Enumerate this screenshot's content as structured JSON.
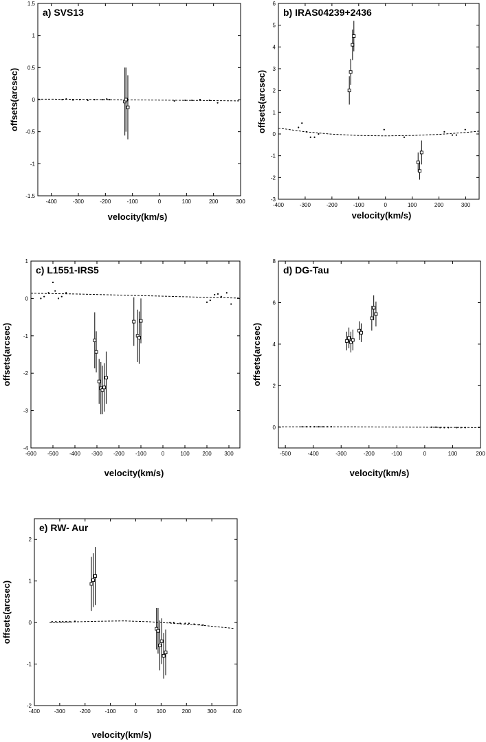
{
  "figure": {
    "background": "#ffffff",
    "ink": "#000000"
  },
  "chart_data": [
    {
      "type": "scatter",
      "title": "a) SVS13",
      "xlabel": "velocity(km/s)",
      "ylabel": "offsets(arcsec)",
      "xlim": [
        -450,
        300
      ],
      "ylim": [
        -1.5,
        1.5
      ],
      "xticks": [
        -400,
        -300,
        -200,
        -100,
        0,
        100,
        200,
        300
      ],
      "yticks": [
        -1.5,
        -1,
        -0.5,
        0,
        0.5,
        1,
        1.5
      ],
      "xtick_labels": [
        "-400",
        "-300",
        "-200",
        "-100",
        "0",
        "100",
        "200",
        "300"
      ],
      "ytick_labels": [
        "-1.5",
        "-1",
        "-0.5",
        "0",
        "0.5",
        "1",
        "1.5"
      ],
      "grid": false,
      "curve": [
        [
          -450,
          0.008
        ],
        [
          -300,
          0.004
        ],
        [
          -150,
          -0.002
        ],
        [
          0,
          -0.008
        ],
        [
          150,
          -0.014
        ],
        [
          300,
          -0.02
        ]
      ],
      "small_points": [
        [
          -360,
          0.0
        ],
        [
          -345,
          0.01
        ],
        [
          -320,
          -0.005
        ],
        [
          -295,
          0.0
        ],
        [
          -265,
          -0.01
        ],
        [
          -240,
          0.0
        ],
        [
          -210,
          0.0
        ],
        [
          -195,
          0.01
        ],
        [
          -185,
          0.0
        ],
        [
          55,
          -0.02
        ],
        [
          95,
          -0.01
        ],
        [
          120,
          -0.01
        ],
        [
          150,
          0.0
        ],
        [
          185,
          -0.01
        ],
        [
          215,
          -0.05
        ]
      ],
      "error_points": [
        {
          "x": -128,
          "y": -0.03,
          "yerr": 0.53
        },
        {
          "x": -124,
          "y": 0.0,
          "yerr": 0.5
        },
        {
          "x": -117,
          "y": -0.12,
          "yerr": 0.5
        }
      ]
    },
    {
      "type": "scatter",
      "title": "b) IRAS04239+2436",
      "xlabel": "velocity(km/s)",
      "ylabel": "offsets(arcsec)",
      "xlim": [
        -400,
        350
      ],
      "ylim": [
        -3,
        6
      ],
      "xticks": [
        -400,
        -300,
        -200,
        -100,
        0,
        100,
        200,
        300
      ],
      "yticks": [
        -3,
        -2,
        -1,
        0,
        1,
        2,
        3,
        4,
        5,
        6
      ],
      "xtick_labels": [
        "-400",
        "-300",
        "-200",
        "-100",
        "0",
        "100",
        "200",
        "300"
      ],
      "ytick_labels": [
        "-3",
        "-2",
        "-1",
        "0",
        "1",
        "2",
        "3",
        "4",
        "5",
        "6"
      ],
      "grid": false,
      "curve": [
        [
          -400,
          0.27
        ],
        [
          -300,
          0.1
        ],
        [
          -200,
          -0.01
        ],
        [
          -100,
          -0.07
        ],
        [
          0,
          -0.09
        ],
        [
          100,
          -0.07
        ],
        [
          200,
          -0.02
        ],
        [
          300,
          0.07
        ],
        [
          350,
          0.13
        ]
      ],
      "small_points": [
        [
          -325,
          0.3
        ],
        [
          -312,
          0.5
        ],
        [
          -295,
          0.1
        ],
        [
          -280,
          -0.15
        ],
        [
          -265,
          -0.15
        ],
        [
          -250,
          0.0
        ],
        [
          -5,
          0.2
        ],
        [
          70,
          -0.15
        ],
        [
          220,
          0.1
        ],
        [
          250,
          -0.05
        ],
        [
          265,
          -0.05
        ],
        [
          298,
          0.2
        ]
      ],
      "error_points": [
        {
          "x": -135,
          "y": 2.0,
          "yerr": 0.65
        },
        {
          "x": -130,
          "y": 2.85,
          "yerr": 0.6
        },
        {
          "x": -123,
          "y": 4.1,
          "yerr": 0.7
        },
        {
          "x": -118,
          "y": 4.5,
          "yerr": 0.7
        },
        {
          "x": 122,
          "y": -1.3,
          "yerr": 0.45
        },
        {
          "x": 128,
          "y": -1.7,
          "yerr": 0.4
        },
        {
          "x": 135,
          "y": -0.85,
          "yerr": 0.55
        }
      ]
    },
    {
      "type": "scatter",
      "title": "c) L1551-IRS5",
      "xlabel": "velocity(km/s)",
      "ylabel": "offsets(arcsec)",
      "xlim": [
        -600,
        350
      ],
      "ylim": [
        -4,
        1
      ],
      "xticks": [
        -600,
        -500,
        -400,
        -300,
        -200,
        -100,
        0,
        100,
        200,
        300
      ],
      "yticks": [
        -4,
        -3,
        -2,
        -1,
        0,
        1
      ],
      "xtick_labels": [
        "-600",
        "-500",
        "-400",
        "-300",
        "-200",
        "-100",
        "0",
        "100",
        "200",
        "300"
      ],
      "ytick_labels": [
        "-4",
        "-3",
        "-2",
        "-1",
        "0",
        "1"
      ],
      "grid": false,
      "curve": [
        [
          -600,
          0.14
        ],
        [
          -400,
          0.12
        ],
        [
          -200,
          0.09
        ],
        [
          0,
          0.06
        ],
        [
          200,
          0.03
        ],
        [
          350,
          0.01
        ]
      ],
      "small_points": [
        [
          -555,
          0.0
        ],
        [
          -540,
          0.05
        ],
        [
          -520,
          0.15
        ],
        [
          -500,
          0.43
        ],
        [
          -490,
          0.2
        ],
        [
          -475,
          0.0
        ],
        [
          -460,
          0.05
        ],
        [
          -440,
          0.15
        ],
        [
          200,
          -0.1
        ],
        [
          215,
          -0.05
        ],
        [
          235,
          0.1
        ],
        [
          250,
          0.12
        ],
        [
          265,
          0.05
        ],
        [
          290,
          0.15
        ],
        [
          310,
          -0.15
        ]
      ],
      "error_points": [
        {
          "x": -310,
          "y": -1.12,
          "yerr": 0.75
        },
        {
          "x": -303,
          "y": -1.43,
          "yerr": 0.55
        },
        {
          "x": -290,
          "y": -2.22,
          "yerr": 0.6
        },
        {
          "x": -282,
          "y": -2.4,
          "yerr": 0.7
        },
        {
          "x": -275,
          "y": -2.45,
          "yerr": 0.65
        },
        {
          "x": -267,
          "y": -2.38,
          "yerr": 0.65
        },
        {
          "x": -258,
          "y": -2.12,
          "yerr": 0.7
        },
        {
          "x": -132,
          "y": -0.62,
          "yerr": 0.65
        },
        {
          "x": -115,
          "y": -1.0,
          "yerr": 0.7
        },
        {
          "x": -108,
          "y": -1.05,
          "yerr": 0.7
        },
        {
          "x": -100,
          "y": -0.6,
          "yerr": 0.6
        }
      ]
    },
    {
      "type": "scatter",
      "title": "d) DG-Tau",
      "xlabel": "velocity(km/s)",
      "ylabel": "offsets(arcsec)",
      "xlim": [
        -525,
        200
      ],
      "ylim": [
        -1,
        8
      ],
      "xticks": [
        -500,
        -400,
        -300,
        -200,
        -100,
        0,
        100,
        200
      ],
      "yticks": [
        0,
        2,
        4,
        6,
        8
      ],
      "xtick_labels": [
        "-500",
        "-400",
        "-300",
        "-200",
        "-100",
        "0",
        "100",
        "200"
      ],
      "ytick_labels": [
        "0",
        "2",
        "4",
        "6",
        "8"
      ],
      "grid": false,
      "curve": [
        [
          -525,
          0.02
        ],
        [
          -300,
          0.02
        ],
        [
          0,
          0.0
        ],
        [
          200,
          -0.02
        ]
      ],
      "small_points": [
        [
          -440,
          0.02
        ],
        [
          -425,
          0.02
        ],
        [
          -410,
          0.02
        ],
        [
          -395,
          0.02
        ],
        [
          -380,
          0.02
        ],
        [
          -365,
          0.02
        ],
        [
          -350,
          0.02
        ],
        [
          -335,
          0.02
        ],
        [
          25,
          0.0
        ],
        [
          40,
          0.0
        ],
        [
          55,
          -0.02
        ],
        [
          70,
          -0.02
        ],
        [
          85,
          -0.02
        ],
        [
          115,
          -0.02
        ],
        [
          130,
          -0.02
        ],
        [
          145,
          -0.02
        ]
      ],
      "error_points": [
        {
          "x": -280,
          "y": 4.15,
          "yerr": 0.45
        },
        {
          "x": -272,
          "y": 4.3,
          "yerr": 0.5
        },
        {
          "x": -265,
          "y": 4.1,
          "yerr": 0.5
        },
        {
          "x": -258,
          "y": 4.2,
          "yerr": 0.5
        },
        {
          "x": -235,
          "y": 4.65,
          "yerr": 0.45
        },
        {
          "x": -228,
          "y": 4.55,
          "yerr": 0.45
        },
        {
          "x": -190,
          "y": 5.25,
          "yerr": 0.6
        },
        {
          "x": -183,
          "y": 5.75,
          "yerr": 0.6
        },
        {
          "x": -175,
          "y": 5.45,
          "yerr": 0.6
        }
      ]
    },
    {
      "type": "scatter",
      "title": "e) RW- Aur",
      "xlabel": "velocity(km/s)",
      "ylabel": "offsets(arcsec)",
      "xlim": [
        -400,
        400
      ],
      "ylim": [
        -2,
        2.5
      ],
      "xticks": [
        -400,
        -300,
        -200,
        -100,
        0,
        100,
        200,
        300,
        400
      ],
      "yticks": [
        -2,
        -1,
        0,
        1,
        2
      ],
      "xtick_labels": [
        "-400",
        "-300",
        "-200",
        "-100",
        "0",
        "100",
        "200",
        "300",
        "400"
      ],
      "ytick_labels": [
        "-2",
        "-1",
        "0",
        "1",
        "2"
      ],
      "grid": false,
      "curve": [
        [
          -340,
          0.0
        ],
        [
          -250,
          0.015
        ],
        [
          -150,
          0.03
        ],
        [
          -50,
          0.04
        ],
        [
          50,
          0.02
        ],
        [
          150,
          -0.02
        ],
        [
          250,
          -0.06
        ],
        [
          350,
          -0.12
        ],
        [
          385,
          -0.14
        ]
      ],
      "small_points": [
        [
          -330,
          0.02
        ],
        [
          -315,
          0.02
        ],
        [
          -300,
          0.02
        ],
        [
          -288,
          0.02
        ],
        [
          -275,
          0.02
        ],
        [
          -260,
          0.02
        ],
        [
          -240,
          0.03
        ],
        [
          135,
          0.0
        ],
        [
          150,
          0.0
        ],
        [
          175,
          -0.02
        ],
        [
          195,
          -0.02
        ],
        [
          210,
          -0.02
        ],
        [
          230,
          -0.04
        ],
        [
          250,
          -0.05
        ],
        [
          265,
          -0.06
        ]
      ],
      "error_points": [
        {
          "x": -175,
          "y": 0.93,
          "yerr": 0.65
        },
        {
          "x": -168,
          "y": 1.02,
          "yerr": 0.65
        },
        {
          "x": -160,
          "y": 1.12,
          "yerr": 0.7
        },
        {
          "x": 82,
          "y": -0.15,
          "yerr": 0.5
        },
        {
          "x": 88,
          "y": -0.2,
          "yerr": 0.55
        },
        {
          "x": 95,
          "y": -0.55,
          "yerr": 0.6
        },
        {
          "x": 102,
          "y": -0.45,
          "yerr": 0.55
        },
        {
          "x": 110,
          "y": -0.8,
          "yerr": 0.55
        },
        {
          "x": 118,
          "y": -0.72,
          "yerr": 0.55
        }
      ]
    }
  ]
}
